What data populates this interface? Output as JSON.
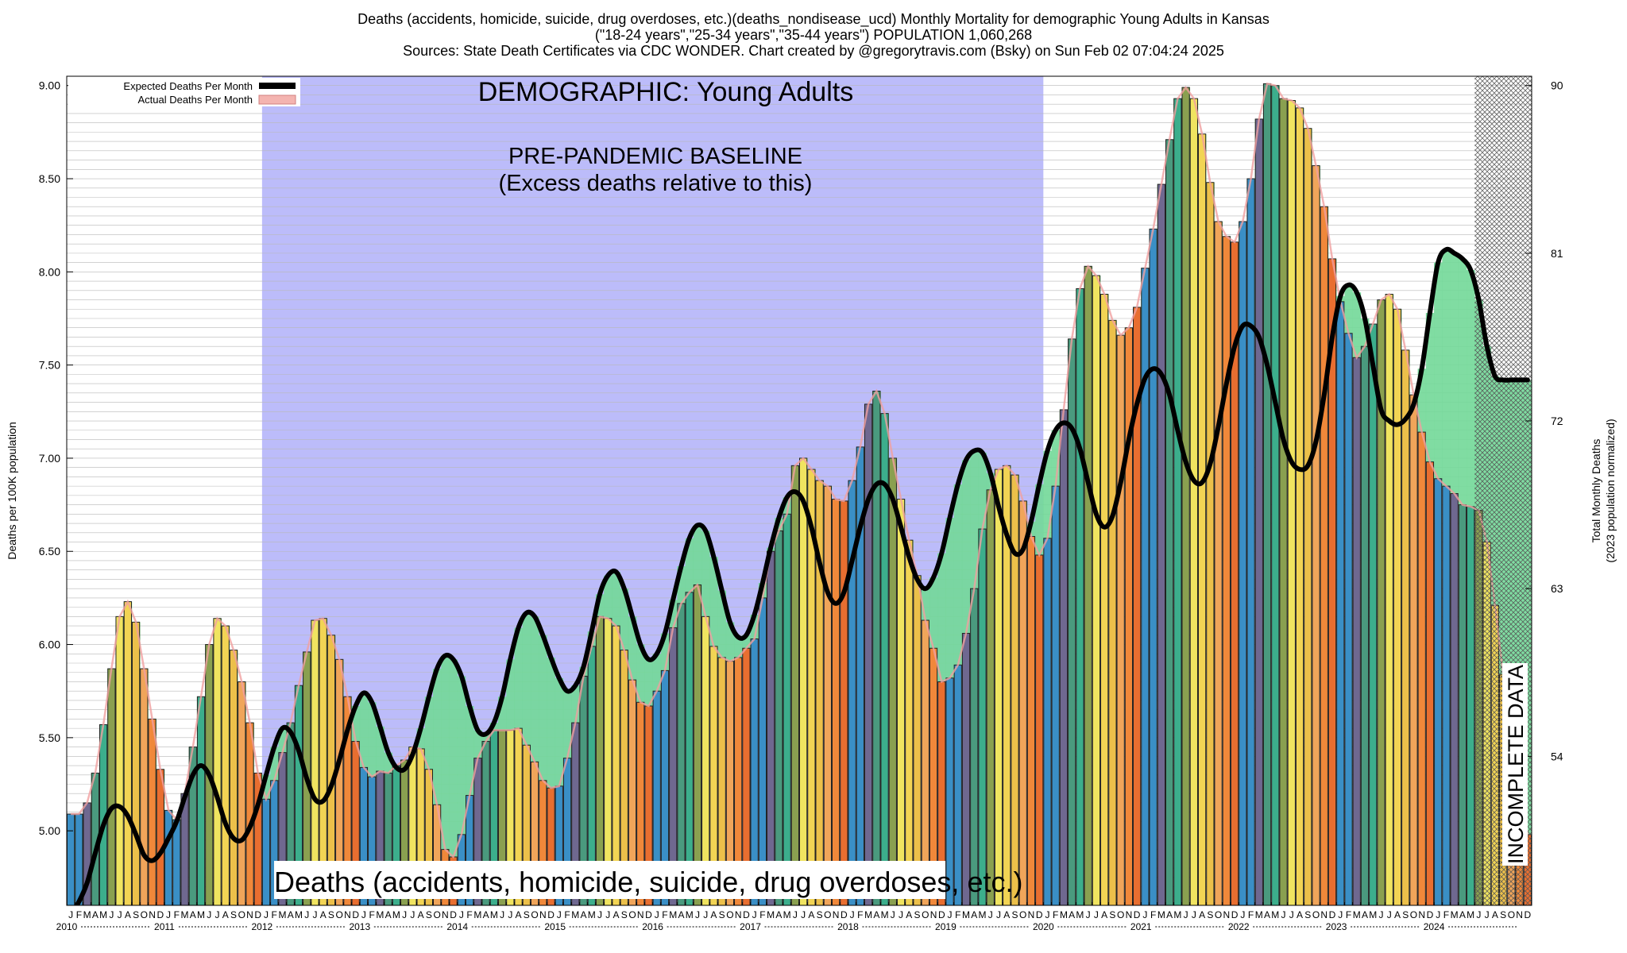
{
  "header": {
    "title_line1": "Deaths (accidents, homicide, suicide, drug overdoses, etc.)(deaths_nondisease_ucd) Monthly Mortality for demographic Young Adults in Kansas",
    "title_line2": "(\"18-24 years\",\"25-34 years\",\"35-44 years\") POPULATION 1,060,268",
    "title_line3": "Sources: State Death Certificates via CDC WONDER.          Chart created by @gregorytravis.com (Bsky) on Sun Feb 02 07:04:24 2025"
  },
  "annotations": {
    "demographic": "DEMOGRAPHIC: Young Adults",
    "baseline_line1": "PRE-PANDEMIC BASELINE",
    "baseline_line2": "(Excess deaths relative to this)",
    "bottom_label": "Deaths (accidents, homicide, suicide, drug overdoses, etc.)",
    "incomplete": "INCOMPLETE DATA"
  },
  "legend": {
    "expected": "Expected Deaths Per Month",
    "actual": "Actual Deaths Per Month"
  },
  "colors": {
    "baseline_region": "#bcbcfa",
    "excess_fill": "#80ee80",
    "deficit_fill": "#72d898",
    "expected_line": "#000000",
    "actual_edge": "#f0a0a0",
    "month_colors": [
      "#3a8fc6",
      "#3a8fc6",
      "#6f6890",
      "#4a9a7e",
      "#3cae8c",
      "#8aa050",
      "#f0e460",
      "#f2d454",
      "#ecc04a",
      "#f0a55a",
      "#f0883a",
      "#e86e30"
    ]
  },
  "chart_data": {
    "type": "bar",
    "x_start": "2010-01",
    "months": 180,
    "month_letters": [
      "J",
      "F",
      "M",
      "A",
      "M",
      "J",
      "J",
      "A",
      "S",
      "O",
      "N",
      "D"
    ],
    "years": [
      "2010",
      "2011",
      "2012",
      "2013",
      "2014",
      "2015",
      "2016",
      "2017",
      "2018",
      "2019",
      "2020",
      "2021",
      "2022",
      "2023",
      "2024"
    ],
    "ylabel": "Deaths per 100K population",
    "y2label_line1": "Total Monthly Deaths",
    "y2label_line2": "(2023 population normalized)",
    "ylim": [
      4.6,
      9.05
    ],
    "y_ticks": [
      "5.00",
      "5.50",
      "6.00",
      "6.50",
      "7.00",
      "7.50",
      "8.00",
      "8.50",
      "9.00"
    ],
    "y2_ticks": [
      "54",
      "63",
      "72",
      "81",
      "90"
    ],
    "baseline_range": [
      "2012-01",
      "2019-12"
    ],
    "incomplete_from": "2024-06",
    "grid": true,
    "legend_position": "top-left",
    "series": [
      {
        "name": "Actual Deaths Per Month",
        "values": [
          5.09,
          5.09,
          5.15,
          5.31,
          5.57,
          5.87,
          6.15,
          6.23,
          6.12,
          5.87,
          5.6,
          5.33,
          5.11,
          5.06,
          5.2,
          5.45,
          5.72,
          6.0,
          6.14,
          6.1,
          5.97,
          5.8,
          5.58,
          5.31,
          5.17,
          5.27,
          5.42,
          5.58,
          5.78,
          5.96,
          6.13,
          6.14,
          6.05,
          5.92,
          5.72,
          5.48,
          5.34,
          5.29,
          5.32,
          5.31,
          5.35,
          5.38,
          5.45,
          5.44,
          5.33,
          5.14,
          4.9,
          4.86,
          4.98,
          5.19,
          5.39,
          5.48,
          5.54,
          5.54,
          5.54,
          5.55,
          5.46,
          5.37,
          5.27,
          5.23,
          5.24,
          5.39,
          5.58,
          5.83,
          5.99,
          6.15,
          6.14,
          6.1,
          5.97,
          5.81,
          5.69,
          5.67,
          5.75,
          5.86,
          6.09,
          6.22,
          6.28,
          6.32,
          6.15,
          5.99,
          5.93,
          5.91,
          5.93,
          5.98,
          6.03,
          6.25,
          6.5,
          6.61,
          6.7,
          6.96,
          7.0,
          6.94,
          6.88,
          6.85,
          6.78,
          6.77,
          6.88,
          7.06,
          7.29,
          7.36,
          7.24,
          7.0,
          6.78,
          6.56,
          6.37,
          6.13,
          5.98,
          5.8,
          5.82,
          5.89,
          6.06,
          6.3,
          6.62,
          6.83,
          6.94,
          6.96,
          6.91,
          6.77,
          6.58,
          6.48,
          6.57,
          6.85,
          7.26,
          7.64,
          7.91,
          8.03,
          7.98,
          7.88,
          7.74,
          7.66,
          7.7,
          7.81,
          8.02,
          8.23,
          8.47,
          8.71,
          8.93,
          8.99,
          8.93,
          8.74,
          8.48,
          8.27,
          8.19,
          8.16,
          8.27,
          8.5,
          8.82,
          9.01,
          9.0,
          8.93,
          8.92,
          8.88,
          8.77,
          8.57,
          8.35,
          8.07,
          7.84,
          7.67,
          7.54,
          7.6,
          7.72,
          7.85,
          7.88,
          7.8,
          7.58,
          7.34,
          7.14,
          6.98,
          6.89,
          6.85,
          6.81,
          6.75,
          6.74,
          6.72,
          6.55,
          6.21,
          5.84,
          5.52,
          5.25,
          4.98
        ]
      },
      {
        "name": "Expected Deaths Per Month",
        "values": [
          4.55,
          4.62,
          4.72,
          4.88,
          5.03,
          5.12,
          5.13,
          5.08,
          4.98,
          4.87,
          4.84,
          4.88,
          4.96,
          5.05,
          5.18,
          5.3,
          5.35,
          5.3,
          5.18,
          5.04,
          4.96,
          4.95,
          5.02,
          5.14,
          5.3,
          5.45,
          5.55,
          5.53,
          5.43,
          5.28,
          5.17,
          5.16,
          5.24,
          5.38,
          5.54,
          5.67,
          5.74,
          5.69,
          5.56,
          5.42,
          5.34,
          5.33,
          5.41,
          5.55,
          5.72,
          5.87,
          5.94,
          5.92,
          5.83,
          5.67,
          5.54,
          5.52,
          5.58,
          5.72,
          5.92,
          6.09,
          6.17,
          6.15,
          6.05,
          5.93,
          5.82,
          5.75,
          5.78,
          5.88,
          6.07,
          6.27,
          6.37,
          6.39,
          6.3,
          6.15,
          6.0,
          5.92,
          5.95,
          6.06,
          6.24,
          6.42,
          6.57,
          6.64,
          6.61,
          6.47,
          6.29,
          6.12,
          6.04,
          6.05,
          6.16,
          6.33,
          6.52,
          6.68,
          6.79,
          6.82,
          6.77,
          6.63,
          6.44,
          6.28,
          6.22,
          6.28,
          6.45,
          6.63,
          6.78,
          6.86,
          6.86,
          6.78,
          6.63,
          6.47,
          6.35,
          6.3,
          6.36,
          6.49,
          6.68,
          6.86,
          6.99,
          7.04,
          7.03,
          6.92,
          6.74,
          6.59,
          6.49,
          6.51,
          6.66,
          6.86,
          7.04,
          7.15,
          7.19,
          7.16,
          7.05,
          6.87,
          6.7,
          6.63,
          6.69,
          6.87,
          7.1,
          7.29,
          7.43,
          7.48,
          7.45,
          7.34,
          7.15,
          6.98,
          6.88,
          6.87,
          6.97,
          7.17,
          7.4,
          7.6,
          7.71,
          7.71,
          7.65,
          7.5,
          7.3,
          7.1,
          6.98,
          6.94,
          6.96,
          7.09,
          7.34,
          7.65,
          7.87,
          7.93,
          7.89,
          7.75,
          7.5,
          7.26,
          7.2,
          7.18,
          7.21,
          7.29,
          7.48,
          7.78,
          8.05,
          8.12,
          8.1,
          8.07,
          8.01,
          7.85,
          7.6,
          7.44,
          7.42,
          7.42,
          7.42,
          7.42
        ]
      }
    ]
  }
}
